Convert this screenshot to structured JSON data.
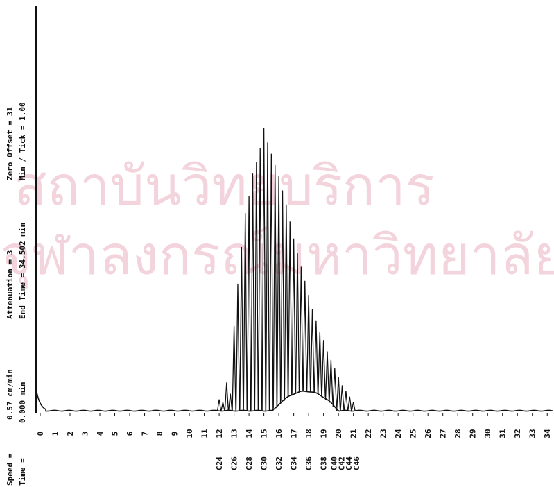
{
  "header": {
    "speed_label": "Speed =",
    "speed": "0.57 cm/min",
    "attenuation": "Attenuation = 3",
    "zero_offset": "Zero Offset = 31",
    "time_label": "Time =",
    "time": "0.000 min",
    "end_time": "End Time = 34.502 min",
    "min_tick": "Min / Tick = 1.00"
  },
  "watermark": [
    "สถาบันวิทยบริการ",
    "จุฬาลงกรณ์มหาวิทยาลัย"
  ],
  "chart_data": {
    "type": "chromatogram",
    "x": [
      12.0,
      12.25,
      12.5,
      12.75,
      13.0,
      13.25,
      13.5,
      13.75,
      14.0,
      14.25,
      14.5,
      14.75,
      15.0,
      15.25,
      15.5,
      15.75,
      16.0,
      16.25,
      16.5,
      16.75,
      17.0,
      17.25,
      17.5,
      17.75,
      18.0,
      18.25,
      18.5,
      18.75,
      19.0,
      19.25,
      19.5,
      19.75,
      20.0,
      20.25,
      20.5,
      20.75,
      21.0
    ],
    "values": [
      4,
      3,
      10,
      6,
      30,
      45,
      58,
      70,
      76,
      84,
      88,
      93,
      100,
      95,
      91,
      87,
      83,
      78,
      73,
      67,
      61,
      56,
      51,
      46,
      41,
      36,
      32,
      28,
      25,
      21,
      18,
      15,
      12,
      9,
      7,
      5,
      3
    ],
    "xlim": [
      0,
      34.5
    ],
    "ylim": [
      0,
      100
    ],
    "xticks": [
      0,
      1,
      2,
      3,
      4,
      5,
      6,
      7,
      8,
      9,
      10,
      11,
      12,
      13,
      14,
      15,
      16,
      17,
      18,
      19,
      20,
      21,
      22,
      23,
      24,
      25,
      26,
      27,
      28,
      29,
      30,
      31,
      32,
      33,
      34
    ],
    "peak_labels": [
      "C24",
      "C26",
      "C28",
      "C30",
      "C32",
      "C34",
      "C36",
      "C38",
      "C40",
      "C42",
      "C44",
      "C46"
    ],
    "peak_label_x": [
      12.0,
      13.0,
      14.0,
      15.0,
      16.0,
      17.0,
      18.0,
      19.0,
      19.7,
      20.2,
      20.7,
      21.2
    ],
    "color": "#111111"
  }
}
